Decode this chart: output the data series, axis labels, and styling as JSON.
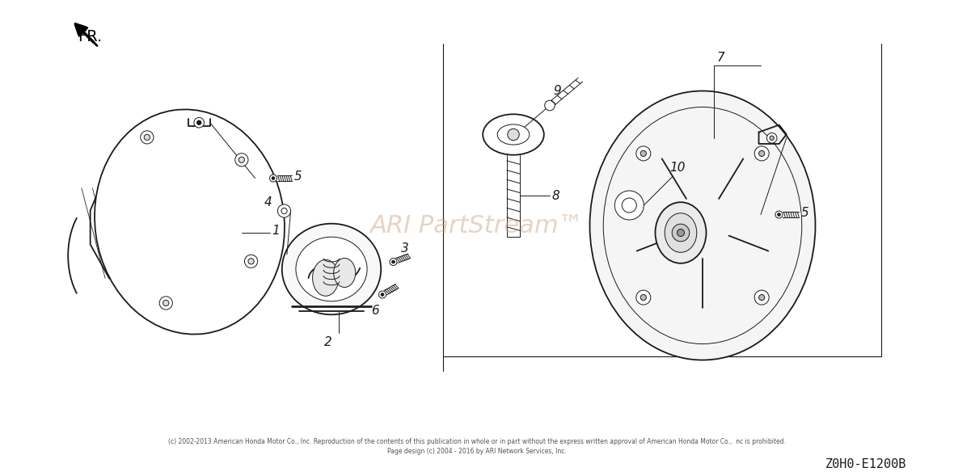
{
  "bg_color": "#ffffff",
  "watermark": "ARI PartStream™",
  "watermark_color": "#c8a080",
  "watermark_alpha": 0.45,
  "footer_line1": "(c) 2002-2013 American Honda Motor Co., Inc. Reproduction of the contents of this publication in whole or in part without the express written approval of American Honda Motor Co.,  nc is prohibited.",
  "footer_line2": "Page design (c) 2004 - 2016 by ARI Network Services, Inc.",
  "part_number": "Z0H0-E1200B",
  "fr_label": "FR.",
  "line_color": "#1a1a1a",
  "lw_main": 1.3,
  "lw_thin": 0.7,
  "lw_thick": 2.0
}
